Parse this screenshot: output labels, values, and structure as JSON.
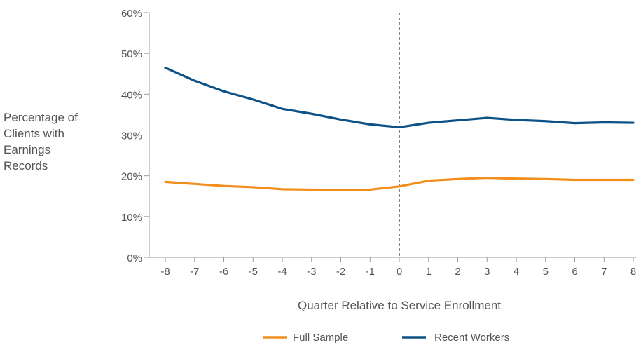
{
  "chart_data": {
    "type": "line",
    "xlabel": "Quarter Relative to Service Enrollment",
    "ylabel_lines": [
      "Percentage of",
      "Clients with",
      "Earnings",
      "Records"
    ],
    "x": [
      -8,
      -7,
      -6,
      -5,
      -4,
      -3,
      -2,
      -1,
      0,
      1,
      2,
      3,
      4,
      5,
      6,
      7,
      8
    ],
    "x_tick_labels": [
      "-8",
      "-7",
      "-6",
      "-5",
      "-4",
      "-3",
      "-2",
      "-1",
      "0",
      "1",
      "2",
      "3",
      "4",
      "5",
      "6",
      "7",
      "8"
    ],
    "ylim": [
      0,
      60
    ],
    "y_ticks": [
      0,
      10,
      20,
      30,
      40,
      50,
      60
    ],
    "y_tick_labels": [
      "0%",
      "10%",
      "20%",
      "30%",
      "40%",
      "50%",
      "60%"
    ],
    "reference_line_x": 0,
    "legend_position": "bottom",
    "series": [
      {
        "name": "Full Sample",
        "color": "#f28e1c",
        "values": [
          18.5,
          18.0,
          17.5,
          17.2,
          16.7,
          16.6,
          16.5,
          16.6,
          17.4,
          18.8,
          19.2,
          19.5,
          19.3,
          19.2,
          19.0,
          19.0,
          19.0
        ]
      },
      {
        "name": "Recent Workers",
        "color": "#0d5286",
        "values": [
          46.5,
          43.3,
          40.7,
          38.7,
          36.4,
          35.2,
          33.8,
          32.6,
          31.9,
          33.0,
          33.6,
          34.2,
          33.7,
          33.4,
          32.9,
          33.1,
          33.0
        ]
      }
    ]
  }
}
